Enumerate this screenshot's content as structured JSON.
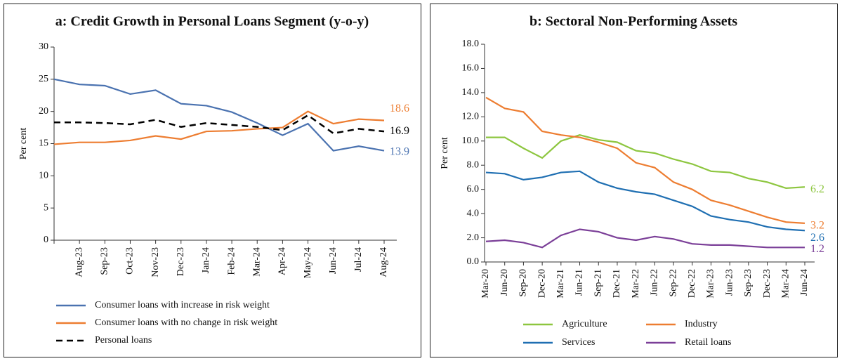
{
  "chart_data": [
    {
      "type": "line",
      "title": "a: Credit Growth in Personal Loans Segment (y-o-y)",
      "ylabel": "Per cent",
      "categories": [
        null,
        "Aug-23",
        "Sep-23",
        "Oct-23",
        "Nov-23",
        "Dec-23",
        "Jan-24",
        "Feb-24",
        "Mar-24",
        "Apr-24",
        "May-24",
        "Jun-24",
        "Jul-24",
        "Aug-24"
      ],
      "ylim": [
        0,
        30
      ],
      "yticks": [
        0,
        5,
        10,
        15,
        20,
        25,
        30
      ],
      "grid": false,
      "series": [
        {
          "name": "Consumer loans with increase in risk weight",
          "color": "#4a72b0",
          "values": [
            25,
            24.2,
            24,
            22.7,
            23.3,
            21.2,
            20.9,
            19.9,
            18.2,
            16.3,
            18.1,
            13.9,
            14.6,
            13.9
          ]
        },
        {
          "name": "Consumer loans with no change in risk weight",
          "color": "#ed7d31",
          "values": [
            14.9,
            15.2,
            15.2,
            15.5,
            16.2,
            15.7,
            16.9,
            17.0,
            17.3,
            17.5,
            20.0,
            18.1,
            18.8,
            18.6
          ]
        },
        {
          "name": "Personal loans",
          "color": "#000000",
          "dashed": true,
          "values": [
            18.3,
            18.3,
            18.2,
            18.0,
            18.7,
            17.6,
            18.2,
            17.9,
            17.6,
            17.1,
            19.4,
            16.6,
            17.3,
            16.9
          ]
        }
      ]
    },
    {
      "type": "line",
      "title": "b: Sectoral Non-Performing Assets",
      "ylabel": "Per cent",
      "categories": [
        "Mar-20",
        "Jun-20",
        "Sep-20",
        "Dec-20",
        "Mar-21",
        "Jun-21",
        "Sep-21",
        "Dec-21",
        "Mar-22",
        "Jun-22",
        "Sep-22",
        "Dec-22",
        "Mar-23",
        "Jun-23",
        "Sep-23",
        "Dec-23",
        "Mar-24",
        "Jun-24"
      ],
      "ylim": [
        0,
        18
      ],
      "yticks": [
        {
          "value": 0,
          "label": "0.0"
        },
        {
          "value": 2,
          "label": "2.0"
        },
        {
          "value": 4,
          "label": "4.0"
        },
        {
          "value": 6,
          "label": "6.0"
        },
        {
          "value": 8,
          "label": "8.0"
        },
        {
          "value": 10,
          "label": "10.0"
        },
        {
          "value": 12,
          "label": "12.0"
        },
        {
          "value": 14,
          "label": "14.0"
        },
        {
          "value": 16,
          "label": "16.0"
        },
        {
          "value": 18,
          "label": "18.0"
        }
      ],
      "grid": false,
      "series": [
        {
          "name": "Agriculture",
          "color": "#8dc63f",
          "values": [
            10.3,
            10.3,
            9.4,
            8.6,
            10.0,
            10.5,
            10.1,
            9.9,
            9.2,
            9.0,
            8.5,
            8.1,
            7.5,
            7.4,
            6.9,
            6.6,
            6.1,
            6.2
          ]
        },
        {
          "name": "Industry",
          "color": "#ed7d31",
          "values": [
            13.6,
            12.7,
            12.4,
            10.8,
            10.5,
            10.3,
            9.9,
            9.4,
            8.2,
            7.8,
            6.6,
            6.0,
            5.1,
            4.7,
            4.2,
            3.7,
            3.3,
            3.2
          ]
        },
        {
          "name": "Services",
          "color": "#1f6fb2",
          "values": [
            7.4,
            7.3,
            6.8,
            7.0,
            7.4,
            7.5,
            6.6,
            6.1,
            5.8,
            5.6,
            5.1,
            4.6,
            3.8,
            3.5,
            3.3,
            2.9,
            2.7,
            2.6
          ]
        },
        {
          "name": "Retail loans",
          "color": "#7b3f98",
          "values": [
            1.7,
            1.8,
            1.6,
            1.2,
            2.2,
            2.7,
            2.5,
            2.0,
            1.8,
            2.1,
            1.9,
            1.5,
            1.4,
            1.4,
            1.3,
            1.2,
            1.2,
            1.2
          ]
        }
      ]
    }
  ]
}
